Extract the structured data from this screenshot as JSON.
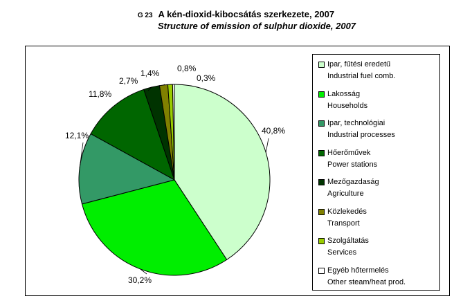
{
  "header": {
    "code": "G 23",
    "title_hu": "A kén-dioxid-kibocsátás szerkezete, 2007",
    "title_en": "Structure of emission of sulphur dioxide, 2007"
  },
  "chart_data": {
    "type": "pie",
    "legend_position": "right",
    "slices": [
      {
        "label_hu": "Ipar, fűtési eredetű",
        "label_en": "Industrial fuel comb.",
        "value": 40.8,
        "value_label": "40,8%",
        "color": "#ccffcc"
      },
      {
        "label_hu": "Lakosság",
        "label_en": "Households",
        "value": 30.2,
        "value_label": "30,2%",
        "color": "#00ee00"
      },
      {
        "label_hu": "Ipar, technológiai",
        "label_en": "Industrial processes",
        "value": 12.1,
        "value_label": "12,1%",
        "color": "#339966"
      },
      {
        "label_hu": "Hőerőművek",
        "label_en": "Power stations",
        "value": 11.8,
        "value_label": "11,8%",
        "color": "#006600"
      },
      {
        "label_hu": "Mezőgazdaság",
        "label_en": "Agriculture",
        "value": 2.7,
        "value_label": "2,7%",
        "color": "#003300"
      },
      {
        "label_hu": "Közlekedés",
        "label_en": "Transport",
        "value": 1.4,
        "value_label": "1,4%",
        "color": "#808000"
      },
      {
        "label_hu": "Szolgáltatás",
        "label_en": "Services",
        "value": 0.8,
        "value_label": "0,8%",
        "color": "#99cc00"
      },
      {
        "label_hu": "Egyéb hőtermelés",
        "label_en": "Other steam/heat prod.",
        "value": 0.3,
        "value_label": "0,3%",
        "color": "#ffffff"
      }
    ]
  }
}
